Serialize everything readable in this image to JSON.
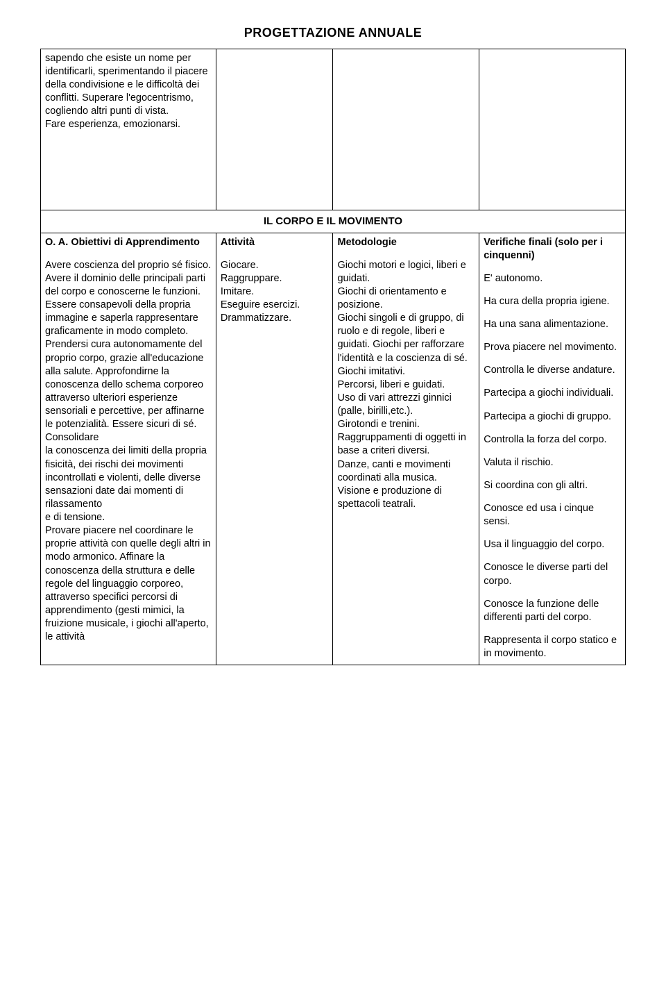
{
  "title": "PROGETTAZIONE ANNUALE",
  "top_block": {
    "col1": "sapendo che esiste un nome per identificarli, sperimentando il piacere della condivisione e le difficoltà dei conflitti. Superare l'egocentrismo, cogliendo altri punti di vista.\nFare esperienza, emozionarsi."
  },
  "section_title": "IL CORPO E IL MOVIMENTO",
  "headers": {
    "col1": "O. A. Obiettivi di Apprendimento",
    "col2": "Attività",
    "col3": "Metodologie",
    "col4": "Verifiche finali (solo per i cinquenni)"
  },
  "body": {
    "col1": "Avere coscienza del proprio sé fisico. Avere il dominio delle principali parti del corpo e conoscerne le funzioni. Essere consapevoli della propria immagine e saperla rappresentare graficamente in modo completo.\nPrendersi cura autonomamente del proprio corpo, grazie all'educazione alla salute. Approfondirne la conoscenza dello schema corporeo attraverso ulteriori esperienze sensoriali e percettive, per affinarne le potenzialità. Essere sicuri di sé. Consolidare\nla conoscenza dei limiti della propria fisicità, dei rischi dei movimenti incontrollati e violenti, delle diverse sensazioni date dai momenti di rilassamento\ne di tensione.\nProvare piacere nel coordinare le proprie attività con quelle degli altri in modo armonico. Affinare la conoscenza della struttura e delle regole del linguaggio corporeo, attraverso specifici percorsi di apprendimento (gesti mimici, la fruizione musicale, i giochi all'aperto, le attività",
    "col2": "Giocare.\nRaggruppare.\nImitare.\nEseguire esercizi.\nDrammatizzare.",
    "col3": "Giochi motori e logici, liberi e guidati.\nGiochi di orientamento e posizione.\nGiochi singoli e di gruppo, di ruolo e di regole, liberi e guidati. Giochi per rafforzare l'identità e la coscienza di sé.\nGiochi imitativi.\nPercorsi, liberi e guidati.\nUso di vari attrezzi ginnici (palle, birilli,etc.).\nGirotondi e trenini. Raggruppamenti di oggetti in base a criteri diversi.\nDanze, canti e movimenti coordinati alla musica.\nVisione e produzione di spettacoli teatrali.",
    "col4_items": [
      "E' autonomo.",
      "Ha cura della propria igiene.",
      "Ha una sana alimentazione.",
      "Prova piacere nel movimento.",
      "Controlla le diverse andature.",
      "Partecipa a giochi individuali.",
      "Partecipa a giochi di gruppo.",
      "Controlla la forza del corpo.",
      "Valuta il rischio.",
      "Si coordina con gli altri.",
      "Conosce ed usa i cinque sensi.",
      "Usa il linguaggio del corpo.",
      "Conosce le diverse parti del corpo.",
      "Conosce la funzione delle differenti parti del corpo.",
      "Rappresenta il corpo statico e in movimento."
    ]
  }
}
